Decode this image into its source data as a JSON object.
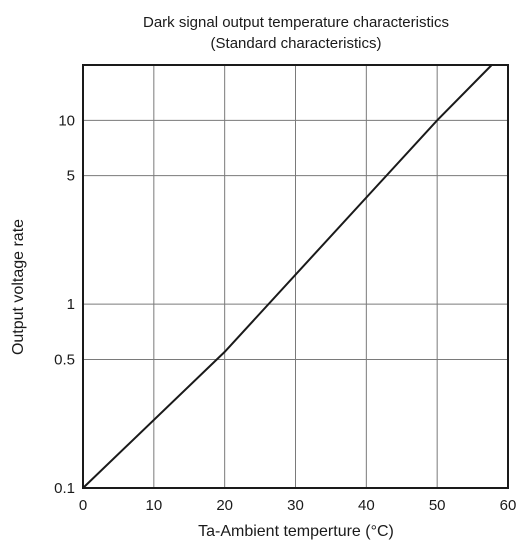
{
  "chart_data": {
    "type": "line",
    "title": "Dark signal output temperature characteristics",
    "subtitle": "(Standard characteristics)",
    "xlabel": "Ta-Ambient temperture (°C)",
    "ylabel": "Output voltage rate",
    "xlim": [
      0,
      60
    ],
    "ylim": [
      0.1,
      20
    ],
    "yscale": "log",
    "grid": true,
    "x_ticks": [
      0,
      10,
      20,
      30,
      40,
      50,
      60
    ],
    "x_tick_labels": [
      "0",
      "10",
      "20",
      "30",
      "40",
      "50",
      "60"
    ],
    "y_ticks": [
      0.1,
      0.5,
      1,
      5,
      10
    ],
    "y_tick_labels": [
      "0.1",
      "0.5",
      "1",
      "5",
      "10"
    ],
    "series": [
      {
        "x": [
          0,
          20,
          50,
          57.7
        ],
        "y": [
          0.1,
          0.55,
          10,
          20
        ],
        "color": "#1a1a1a"
      }
    ]
  }
}
